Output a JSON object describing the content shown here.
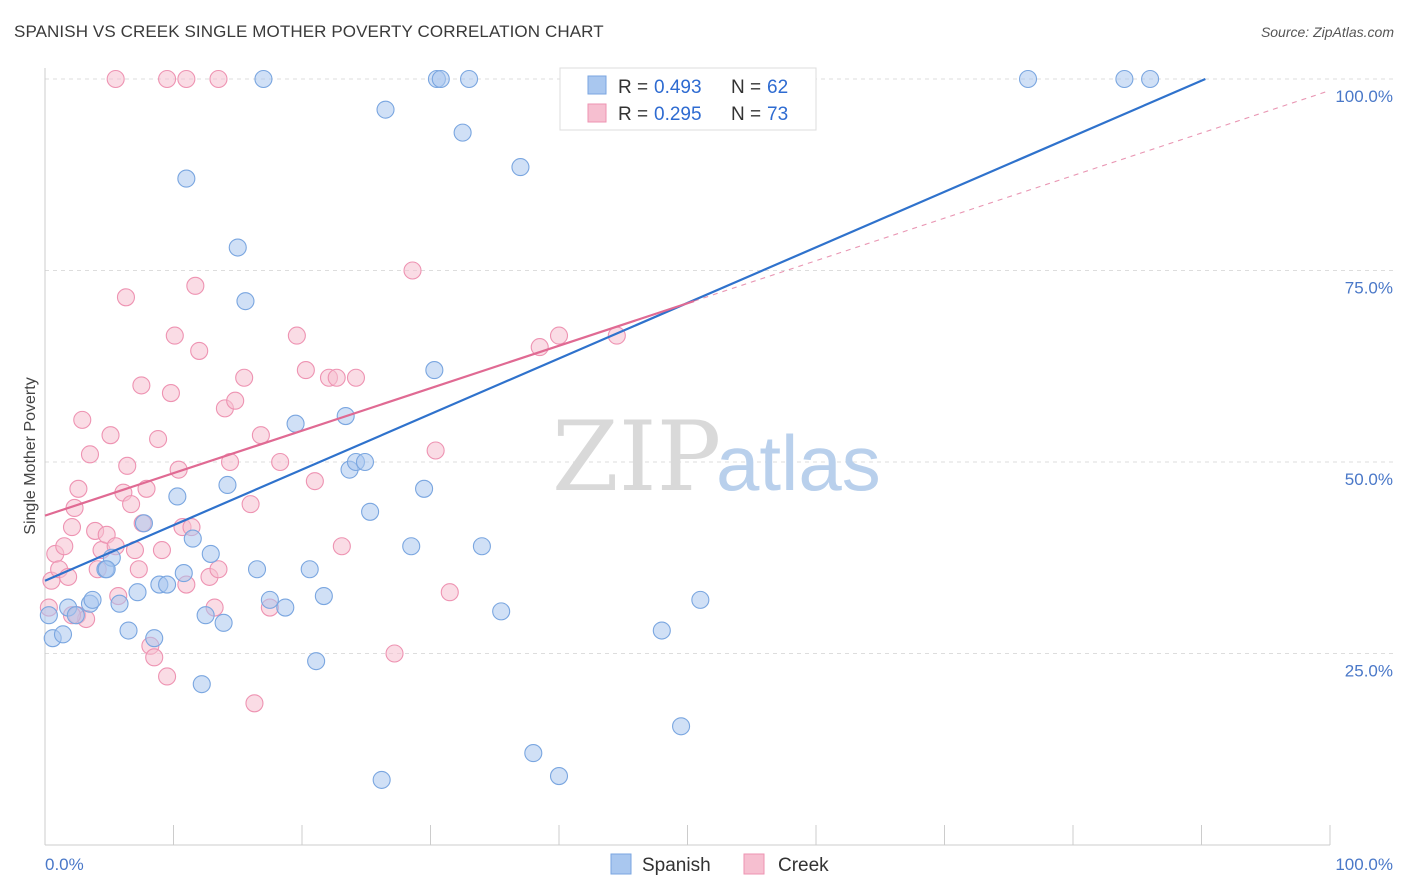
{
  "title": "SPANISH VS CREEK SINGLE MOTHER POVERTY CORRELATION CHART",
  "source": "Source: ZipAtlas.com",
  "watermark": {
    "zip": "ZIP",
    "atlas": "atlas"
  },
  "colors": {
    "spanish_fill": "#a9c7ef",
    "spanish_stroke": "#7aa6e0",
    "spanish_line": "#2f72cc",
    "creek_fill": "#f6bfd0",
    "creek_stroke": "#ee93b2",
    "creek_line": "#e06a93",
    "grid": "#dddddd",
    "tick_label": "#4a78c8"
  },
  "legend": {
    "rows": [
      {
        "r_label": "R =",
        "r_value": "0.493",
        "n_label": "N =",
        "n_value": "62"
      },
      {
        "r_label": "R =",
        "r_value": "0.295",
        "n_label": "N =",
        "n_value": "73"
      }
    ]
  },
  "bottom_legend": [
    "Spanish",
    "Creek"
  ],
  "chart_data": {
    "type": "scatter",
    "title": "SPANISH VS CREEK SINGLE MOTHER POVERTY CORRELATION CHART",
    "xlabel": "",
    "ylabel": "Single Mother Poverty",
    "xlim": [
      0,
      100
    ],
    "ylim": [
      0,
      100
    ],
    "x_tick_labels": [
      "0.0%",
      "100.0%"
    ],
    "y_tick_labels": [
      "25.0%",
      "50.0%",
      "75.0%",
      "100.0%"
    ],
    "y_ticks": [
      25,
      50,
      75,
      100
    ],
    "grid": true,
    "legend_position": "top-center",
    "series": [
      {
        "name": "Spanish",
        "stats": {
          "R": 0.493,
          "N": 62
        },
        "trend": {
          "x": [
            0,
            90.3
          ],
          "y": [
            34.5,
            100
          ]
        },
        "points": [
          [
            0.3,
            30
          ],
          [
            0.6,
            27
          ],
          [
            1.4,
            27.5
          ],
          [
            1.8,
            31
          ],
          [
            2.4,
            30
          ],
          [
            3.5,
            31.5
          ],
          [
            4.7,
            36
          ],
          [
            5.2,
            37.5
          ],
          [
            3.7,
            32
          ],
          [
            4.8,
            36
          ],
          [
            5.8,
            31.5
          ],
          [
            6.5,
            28
          ],
          [
            7.2,
            33
          ],
          [
            7.7,
            42
          ],
          [
            8.5,
            27
          ],
          [
            8.9,
            34
          ],
          [
            9.5,
            34
          ],
          [
            10.3,
            45.5
          ],
          [
            10.8,
            35.5
          ],
          [
            11.5,
            40
          ],
          [
            12.2,
            21
          ],
          [
            12.9,
            38
          ],
          [
            13.9,
            29
          ],
          [
            11,
            87
          ],
          [
            12.5,
            30
          ],
          [
            14.2,
            47
          ],
          [
            15.6,
            71
          ],
          [
            16.5,
            36
          ],
          [
            17.5,
            32
          ],
          [
            18.7,
            31
          ],
          [
            19.5,
            55
          ],
          [
            20.6,
            36
          ],
          [
            21.1,
            24
          ],
          [
            21.7,
            32.5
          ],
          [
            23.4,
            56
          ],
          [
            23.7,
            49
          ],
          [
            24.2,
            50
          ],
          [
            24.9,
            50
          ],
          [
            25.3,
            43.5
          ],
          [
            26.2,
            8.5
          ],
          [
            26.5,
            96
          ],
          [
            28.5,
            39
          ],
          [
            29.5,
            46.5
          ],
          [
            30.5,
            100
          ],
          [
            30.8,
            100
          ],
          [
            30.3,
            62
          ],
          [
            32.5,
            93
          ],
          [
            33,
            100
          ],
          [
            34,
            39
          ],
          [
            35.5,
            30.5
          ],
          [
            37,
            88.5
          ],
          [
            38,
            12
          ],
          [
            40,
            9
          ],
          [
            15,
            78
          ],
          [
            17,
            100
          ],
          [
            42,
            100
          ],
          [
            48,
            28
          ],
          [
            51,
            32
          ],
          [
            49.5,
            15.5
          ],
          [
            76.5,
            100
          ],
          [
            84,
            100
          ],
          [
            86,
            100
          ]
        ]
      },
      {
        "name": "Creek",
        "stats": {
          "R": 0.295,
          "N": 73
        },
        "trend": {
          "x": [
            0,
            50.5
          ],
          "y": [
            43,
            71
          ]
        },
        "trend_dashed": {
          "x": [
            50.5,
            100
          ],
          "y": [
            71,
            98.5
          ]
        },
        "points": [
          [
            0.3,
            31
          ],
          [
            0.5,
            34.5
          ],
          [
            0.8,
            38
          ],
          [
            1.1,
            36
          ],
          [
            1.5,
            39
          ],
          [
            1.8,
            35
          ],
          [
            2.1,
            41.5
          ],
          [
            2.5,
            30
          ],
          [
            2.3,
            44
          ],
          [
            2.6,
            46.5
          ],
          [
            2.9,
            55.5
          ],
          [
            3.2,
            29.5
          ],
          [
            3.5,
            51
          ],
          [
            3.9,
            41
          ],
          [
            4.1,
            36
          ],
          [
            4.4,
            38.5
          ],
          [
            4.8,
            40.5
          ],
          [
            5.1,
            53.5
          ],
          [
            5.5,
            39
          ],
          [
            5.7,
            32.5
          ],
          [
            6.1,
            46
          ],
          [
            6.4,
            49.5
          ],
          [
            6.7,
            44.5
          ],
          [
            7,
            38.5
          ],
          [
            7.3,
            36
          ],
          [
            7.6,
            42
          ],
          [
            7.9,
            46.5
          ],
          [
            8.2,
            26
          ],
          [
            8.5,
            24.5
          ],
          [
            8.8,
            53
          ],
          [
            9.1,
            38.5
          ],
          [
            9.5,
            22
          ],
          [
            9.8,
            59
          ],
          [
            10.1,
            66.5
          ],
          [
            10.4,
            49
          ],
          [
            10.7,
            41.5
          ],
          [
            11,
            34
          ],
          [
            11.4,
            41.5
          ],
          [
            11.7,
            73
          ],
          [
            12,
            64.5
          ],
          [
            12.8,
            35
          ],
          [
            13.2,
            31
          ],
          [
            13.5,
            36
          ],
          [
            14,
            57
          ],
          [
            14.4,
            50
          ],
          [
            14.8,
            58
          ],
          [
            15.5,
            61
          ],
          [
            16,
            44.5
          ],
          [
            16.3,
            18.5
          ],
          [
            16.8,
            53.5
          ],
          [
            17.5,
            31
          ],
          [
            18.3,
            50
          ],
          [
            19.6,
            66.5
          ],
          [
            20.3,
            62
          ],
          [
            21,
            47.5
          ],
          [
            22.1,
            61
          ],
          [
            22.7,
            61
          ],
          [
            23.1,
            39
          ],
          [
            24.2,
            61
          ],
          [
            27.2,
            25
          ],
          [
            28.6,
            75
          ],
          [
            30.4,
            51.5
          ],
          [
            31.5,
            33
          ],
          [
            38.5,
            65
          ],
          [
            40,
            66.5
          ],
          [
            44.5,
            66.5
          ],
          [
            6.3,
            71.5
          ],
          [
            2.1,
            30
          ],
          [
            7.5,
            60
          ],
          [
            5.5,
            100
          ],
          [
            9.5,
            100
          ],
          [
            11,
            100
          ],
          [
            13.5,
            100
          ]
        ]
      }
    ]
  }
}
